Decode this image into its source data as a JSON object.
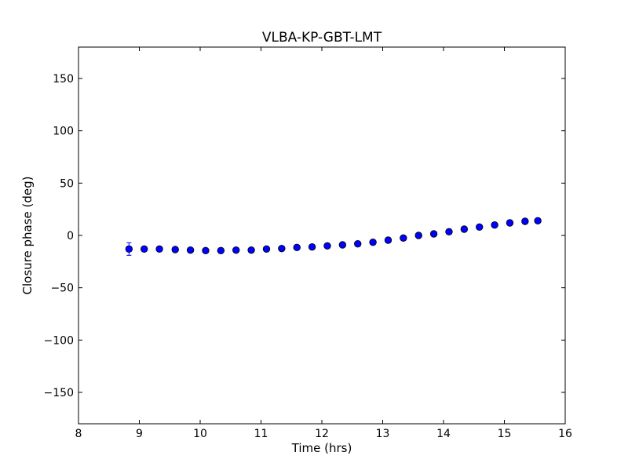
{
  "chart_data": {
    "type": "scatter",
    "title": "VLBA-KP-GBT-LMT",
    "xlabel": "Time (hrs)",
    "ylabel": "Closure phase (deg)",
    "xlim": [
      8,
      16
    ],
    "ylim": [
      -180,
      180
    ],
    "xticks": [
      8,
      9,
      10,
      11,
      12,
      13,
      14,
      15,
      16
    ],
    "yticks": [
      -150,
      -100,
      -50,
      0,
      50,
      100,
      150
    ],
    "xtick_labels": [
      "8",
      "9",
      "10",
      "11",
      "12",
      "13",
      "14",
      "15",
      "16"
    ],
    "ytick_labels": [
      "−150",
      "−100",
      "−50",
      "0",
      "50",
      "100",
      "150"
    ],
    "marker_color": "#0000ff",
    "series": [
      {
        "name": "closure phase",
        "x": [
          8.83,
          9.08,
          9.33,
          9.59,
          9.84,
          10.09,
          10.34,
          10.59,
          10.84,
          11.09,
          11.34,
          11.59,
          11.84,
          12.09,
          12.34,
          12.59,
          12.84,
          13.09,
          13.34,
          13.59,
          13.84,
          14.09,
          14.34,
          14.59,
          14.84,
          15.09,
          15.34,
          15.55
        ],
        "y": [
          -13.0,
          -13.0,
          -13.0,
          -13.5,
          -14.0,
          -14.5,
          -14.5,
          -14.0,
          -14.0,
          -13.0,
          -12.5,
          -11.5,
          -11.0,
          -10.0,
          -9.0,
          -8.0,
          -6.5,
          -4.5,
          -2.5,
          0.0,
          1.5,
          3.5,
          6.0,
          8.0,
          10.0,
          12.0,
          13.5,
          14.0
        ],
        "yerr": [
          6.0,
          1.5,
          1.5,
          1.5,
          1.5,
          1.5,
          1.5,
          1.5,
          1.5,
          1.5,
          1.5,
          1.5,
          1.5,
          1.5,
          1.5,
          1.5,
          1.5,
          1.5,
          1.5,
          1.5,
          1.5,
          1.5,
          1.5,
          1.5,
          1.5,
          1.5,
          1.5,
          1.5
        ]
      }
    ]
  }
}
